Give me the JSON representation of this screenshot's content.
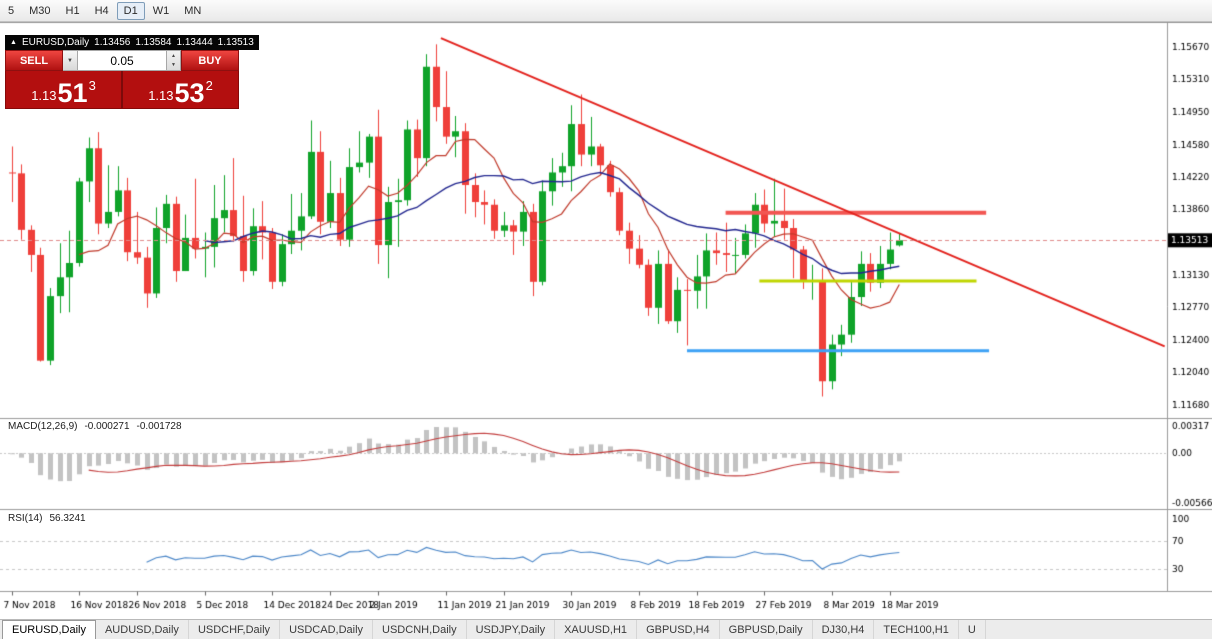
{
  "toolbar": {
    "timeframes": [
      {
        "label": "5",
        "active": false
      },
      {
        "label": "M30",
        "active": false
      },
      {
        "label": "H1",
        "active": false
      },
      {
        "label": "H4",
        "active": false
      },
      {
        "label": "D1",
        "active": true
      },
      {
        "label": "W1",
        "active": false
      },
      {
        "label": "MN",
        "active": false
      }
    ]
  },
  "icons": {
    "collapse": "▲",
    "dropdown": "▼",
    "spin_up": "▲",
    "spin_down": "▼"
  },
  "symbol_header": {
    "title": "EURUSD,Daily",
    "open": "1.13456",
    "high": "1.13584",
    "low": "1.13444",
    "close": "1.13513"
  },
  "trade_panel": {
    "sell_label": "SELL",
    "buy_label": "BUY",
    "volume": "0.05",
    "sell_price_big": "1.13",
    "sell_price_pips": "51",
    "sell_price_sup": "3",
    "buy_price_big": "1.13",
    "buy_price_pips": "53",
    "buy_price_sup": "2"
  },
  "macd_panel": {
    "label": "MACD(12,26,9)",
    "value1": "-0.000271",
    "value2": "-0.001728"
  },
  "rsi_panel": {
    "label": "RSI(14)",
    "value": "56.3241"
  },
  "tabs": [
    {
      "label": "EURUSD,Daily",
      "active": true
    },
    {
      "label": "AUDUSD,Daily",
      "active": false
    },
    {
      "label": "USDCHF,Daily",
      "active": false
    },
    {
      "label": "USDCAD,Daily",
      "active": false
    },
    {
      "label": "USDCNH,Daily",
      "active": false
    },
    {
      "label": "USDJPY,Daily",
      "active": false
    },
    {
      "label": "XAUUSD,H1",
      "active": false
    },
    {
      "label": "GBPUSD,H4",
      "active": false
    },
    {
      "label": "GBPUSD,Daily",
      "active": false
    },
    {
      "label": "DJ30,H4",
      "active": false
    },
    {
      "label": "TECH100,H1",
      "active": false
    },
    {
      "label": "U",
      "active": false
    }
  ],
  "chart_data": {
    "type": "candlestick",
    "symbol": "EURUSD",
    "period": "Daily",
    "current_price": 1.13513,
    "current_price_label": "1.13513",
    "y_range": [
      1.1153,
      1.1586
    ],
    "price_scale_labels": [
      "1.15670",
      "1.15310",
      "1.14950",
      "1.14580",
      "1.14220",
      "1.13860",
      "1.13500",
      "1.13130",
      "1.12770",
      "1.12400",
      "1.12040",
      "1.11680"
    ],
    "date_ticks": [
      {
        "label": "7 Nov 2018",
        "index": 0
      },
      {
        "label": "16 Nov 2018",
        "index": 7
      },
      {
        "label": "26 Nov 2018",
        "index": 13
      },
      {
        "label": "5 Dec 2018",
        "index": 20
      },
      {
        "label": "14 Dec 2018",
        "index": 27
      },
      {
        "label": "24 Dec 2018",
        "index": 33
      },
      {
        "label": "2 Jan 2019",
        "index": 38
      },
      {
        "label": "11 Jan 2019",
        "index": 45
      },
      {
        "label": "21 Jan 2019",
        "index": 51
      },
      {
        "label": "30 Jan 2019",
        "index": 58
      },
      {
        "label": "8 Feb 2019",
        "index": 65
      },
      {
        "label": "18 Feb 2019",
        "index": 71
      },
      {
        "label": "27 Feb 2019",
        "index": 78
      },
      {
        "label": "8 Mar 2019",
        "index": 85
      },
      {
        "label": "18 Mar 2019",
        "index": 91
      }
    ],
    "ohlc": [
      [
        1.1427,
        1.1456,
        1.1394,
        1.1426
      ],
      [
        1.1426,
        1.1436,
        1.1352,
        1.1363
      ],
      [
        1.1363,
        1.1368,
        1.1316,
        1.1335
      ],
      [
        1.1335,
        1.1343,
        1.1216,
        1.1217
      ],
      [
        1.1217,
        1.1298,
        1.1212,
        1.1289
      ],
      [
        1.1289,
        1.1348,
        1.127,
        1.131
      ],
      [
        1.131,
        1.1362,
        1.1271,
        1.1326
      ],
      [
        1.1326,
        1.1421,
        1.1322,
        1.1417
      ],
      [
        1.1417,
        1.1466,
        1.1394,
        1.1454
      ],
      [
        1.1454,
        1.1472,
        1.1358,
        1.137
      ],
      [
        1.137,
        1.1435,
        1.1365,
        1.1383
      ],
      [
        1.1383,
        1.1434,
        1.1378,
        1.1407
      ],
      [
        1.1407,
        1.1421,
        1.1328,
        1.1338
      ],
      [
        1.1338,
        1.1383,
        1.1325,
        1.1332
      ],
      [
        1.1332,
        1.1344,
        1.1276,
        1.1292
      ],
      [
        1.1292,
        1.1388,
        1.1287,
        1.1365
      ],
      [
        1.1365,
        1.1402,
        1.1348,
        1.1392
      ],
      [
        1.1392,
        1.14,
        1.1305,
        1.1317
      ],
      [
        1.1317,
        1.138,
        1.1317,
        1.1354
      ],
      [
        1.1354,
        1.142,
        1.1331,
        1.1342
      ],
      [
        1.1342,
        1.136,
        1.131,
        1.1344
      ],
      [
        1.1344,
        1.1413,
        1.1321,
        1.1376
      ],
      [
        1.1376,
        1.1424,
        1.136,
        1.1385
      ],
      [
        1.1385,
        1.1443,
        1.135,
        1.1356
      ],
      [
        1.1356,
        1.1401,
        1.1305,
        1.1317
      ],
      [
        1.1317,
        1.1387,
        1.1312,
        1.1367
      ],
      [
        1.1367,
        1.1395,
        1.133,
        1.136
      ],
      [
        1.136,
        1.1365,
        1.1297,
        1.1305
      ],
      [
        1.1305,
        1.1358,
        1.13,
        1.1347
      ],
      [
        1.1347,
        1.1403,
        1.1336,
        1.1362
      ],
      [
        1.1362,
        1.1404,
        1.134,
        1.1378
      ],
      [
        1.1378,
        1.1485,
        1.1375,
        1.145
      ],
      [
        1.145,
        1.1473,
        1.1358,
        1.1372
      ],
      [
        1.1372,
        1.144,
        1.1365,
        1.1404
      ],
      [
        1.1404,
        1.1421,
        1.1345,
        1.1352
      ],
      [
        1.1352,
        1.1454,
        1.1344,
        1.1433
      ],
      [
        1.1433,
        1.1473,
        1.1427,
        1.1438
      ],
      [
        1.1438,
        1.147,
        1.1421,
        1.1467
      ],
      [
        1.1467,
        1.1497,
        1.1325,
        1.1346
      ],
      [
        1.1346,
        1.1411,
        1.1309,
        1.1394
      ],
      [
        1.1394,
        1.142,
        1.1344,
        1.1396
      ],
      [
        1.1396,
        1.1485,
        1.139,
        1.1475
      ],
      [
        1.1475,
        1.1486,
        1.1422,
        1.1443
      ],
      [
        1.1443,
        1.1559,
        1.1434,
        1.1545
      ],
      [
        1.1545,
        1.157,
        1.1484,
        1.15
      ],
      [
        1.15,
        1.154,
        1.1459,
        1.1467
      ],
      [
        1.1467,
        1.149,
        1.1444,
        1.1473
      ],
      [
        1.1473,
        1.1482,
        1.1381,
        1.1413
      ],
      [
        1.1413,
        1.1426,
        1.1377,
        1.1394
      ],
      [
        1.1394,
        1.1407,
        1.1369,
        1.1391
      ],
      [
        1.1391,
        1.1397,
        1.1353,
        1.1362
      ],
      [
        1.1362,
        1.1383,
        1.1355,
        1.1368
      ],
      [
        1.1368,
        1.1374,
        1.1335,
        1.1361
      ],
      [
        1.1361,
        1.1395,
        1.1345,
        1.1383
      ],
      [
        1.1383,
        1.1392,
        1.1289,
        1.1305
      ],
      [
        1.1305,
        1.1418,
        1.1301,
        1.1406
      ],
      [
        1.1406,
        1.1443,
        1.139,
        1.1427
      ],
      [
        1.1427,
        1.1449,
        1.1411,
        1.1434
      ],
      [
        1.1434,
        1.1502,
        1.1406,
        1.1481
      ],
      [
        1.1481,
        1.1514,
        1.1434,
        1.1447
      ],
      [
        1.1447,
        1.1489,
        1.1434,
        1.1456
      ],
      [
        1.1456,
        1.1459,
        1.1424,
        1.1435
      ],
      [
        1.1435,
        1.144,
        1.14,
        1.1405
      ],
      [
        1.1405,
        1.141,
        1.1357,
        1.1362
      ],
      [
        1.1362,
        1.1371,
        1.1325,
        1.1342
      ],
      [
        1.1342,
        1.1357,
        1.132,
        1.1324
      ],
      [
        1.1324,
        1.133,
        1.1267,
        1.1276
      ],
      [
        1.1276,
        1.134,
        1.1258,
        1.1325
      ],
      [
        1.1325,
        1.1341,
        1.1258,
        1.1261
      ],
      [
        1.1261,
        1.131,
        1.1248,
        1.1296
      ],
      [
        1.1296,
        1.1308,
        1.1234,
        1.1295
      ],
      [
        1.1295,
        1.1335,
        1.1275,
        1.1311
      ],
      [
        1.1311,
        1.1359,
        1.1275,
        1.134
      ],
      [
        1.134,
        1.136,
        1.1324,
        1.1337
      ],
      [
        1.1337,
        1.1371,
        1.1316,
        1.1335
      ],
      [
        1.1335,
        1.1354,
        1.1314,
        1.1335
      ],
      [
        1.1335,
        1.1369,
        1.1331,
        1.1359
      ],
      [
        1.1359,
        1.1404,
        1.1343,
        1.1391
      ],
      [
        1.1391,
        1.1408,
        1.136,
        1.137
      ],
      [
        1.137,
        1.142,
        1.1355,
        1.1373
      ],
      [
        1.1373,
        1.1409,
        1.1352,
        1.1365
      ],
      [
        1.1365,
        1.1375,
        1.1309,
        1.1341
      ],
      [
        1.1341,
        1.1345,
        1.1297,
        1.1306
      ],
      [
        1.1306,
        1.1324,
        1.1285,
        1.1307
      ],
      [
        1.1307,
        1.132,
        1.1177,
        1.1194
      ],
      [
        1.1194,
        1.1246,
        1.1185,
        1.1235
      ],
      [
        1.1235,
        1.1257,
        1.1222,
        1.1246
      ],
      [
        1.1246,
        1.1306,
        1.1237,
        1.1288
      ],
      [
        1.1288,
        1.1339,
        1.1278,
        1.1325
      ],
      [
        1.1325,
        1.1337,
        1.1294,
        1.1304
      ],
      [
        1.1304,
        1.1345,
        1.1298,
        1.1325
      ],
      [
        1.1325,
        1.136,
        1.1319,
        1.1341
      ],
      [
        1.13456,
        1.13584,
        1.13444,
        1.13513
      ]
    ],
    "overlays": {
      "ma_fast": {
        "period": 8,
        "color": "#c03a2b"
      },
      "ma_slow": {
        "period": 21,
        "color": "#22268f"
      },
      "trendline": {
        "points": [
          {
            "index": 44.5,
            "price": 1.1577
          },
          {
            "index": 119.5,
            "price": 1.1233
          }
        ],
        "color": "#e3211c",
        "width": 2
      },
      "hlines": [
        {
          "price": 1.1382,
          "from_index": 74,
          "to_index": 101,
          "color": "#f25652",
          "width": 4
        },
        {
          "price": 1.1306,
          "from_index": 77.5,
          "to_index": 100,
          "color": "#bfd500",
          "width": 3
        },
        {
          "price": 1.1228,
          "from_index": 70,
          "to_index": 101.3,
          "color": "#3da2f5",
          "width": 3
        }
      ]
    },
    "indicators": {
      "macd": {
        "fast": 12,
        "slow": 26,
        "signal": 9,
        "y_range": [
          -0.0063,
          0.0036
        ],
        "scale_labels": [
          "0.00317",
          "0.00",
          "-0.005667"
        ]
      },
      "rsi": {
        "period": 14,
        "y_range": [
          0,
          110
        ],
        "levels": [
          70,
          30
        ],
        "scale_labels": [
          "100",
          "70",
          "30"
        ]
      }
    },
    "colors": {
      "background": "#ffffff",
      "up": "#0fa329",
      "down": "#ef3f3a",
      "bid_line": "#e08a8a",
      "badge_bg": "#000000",
      "badge_text": "#ffffff",
      "macd_bar": "#c3c3c3",
      "macd_signal": "#c23b3b",
      "rsi_line": "#4a86c8",
      "level_line": "#c8c8c8",
      "separator": "#9a9a9a",
      "axis_text": "#000000"
    }
  }
}
